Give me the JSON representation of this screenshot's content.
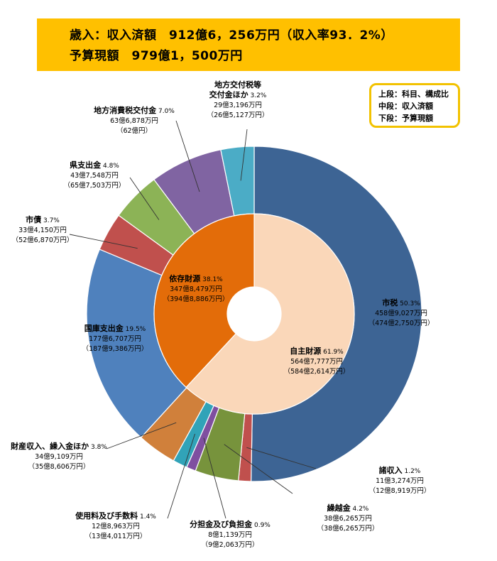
{
  "header": {
    "line1": "歳入：収入済額　912億6，256万円（収入率93．2%）",
    "line2": "予算現額　979億1，500万円"
  },
  "legend_box": {
    "line1": "上段：科目、構成比",
    "line2": "中段：収入済額",
    "line3": "下段：予算現額"
  },
  "chart_data": {
    "type": "pie",
    "subtype": "nested-donut",
    "start": "12 o'clock",
    "direction": "clockwise",
    "inner_ring": [
      {
        "name": "自主財源",
        "pct": "61.9%",
        "share": 61.9,
        "actual": "564億7,777万円",
        "budget": "（584億2,614万円）",
        "color": "#fad7b9"
      },
      {
        "name": "依存財源",
        "pct": "38.1%",
        "share": 38.1,
        "actual": "347億8,479万円",
        "budget": "（394億8,886万円）",
        "color": "#e36c09"
      }
    ],
    "outer_ring": [
      {
        "name": "市税",
        "pct": "50.3%",
        "share": 50.3,
        "actual": "458億9,027万円",
        "budget": "（474億2,750万円）",
        "color": "#3d6494"
      },
      {
        "name": "諸収入",
        "pct": "1.2%",
        "share": 1.2,
        "actual": "11億3,274万円",
        "budget": "（12億8,919万円）",
        "color": "#c0504d"
      },
      {
        "name": "繰越金",
        "pct": "4.2%",
        "share": 4.2,
        "actual": "38億6,265万円",
        "budget": "（38億6,265万円）",
        "color": "#77933c"
      },
      {
        "name": "分担金及び負担金",
        "pct": "0.9%",
        "share": 0.9,
        "actual": "8億1,139万円",
        "budget": "（9億2,063万円）",
        "color": "#7f4fa0"
      },
      {
        "name": "使用料及び手数料",
        "pct": "1.4%",
        "share": 1.4,
        "actual": "12億8,963万円",
        "budget": "（13億4,011万円）",
        "color": "#31a3b8"
      },
      {
        "name": "財産収入、繰入金ほか",
        "pct": "3.8%",
        "share": 3.8,
        "actual": "34億9,109万円",
        "budget": "（35億8,606万円）",
        "color": "#d0803b"
      },
      {
        "name": "国庫支出金",
        "pct": "19.5%",
        "share": 19.5,
        "actual": "177億6,707万円",
        "budget": "（187億9,386万円）",
        "color": "#4f81bd"
      },
      {
        "name": "市債",
        "pct": "3.7%",
        "share": 3.7,
        "actual": "33億4,150万円",
        "budget": "（52億6,870万円）",
        "color": "#c0504d"
      },
      {
        "name": "県支出金",
        "pct": "4.8%",
        "share": 4.8,
        "actual": "43億7,548万円",
        "budget": "（65億7,503万円）",
        "color": "#8cb356"
      },
      {
        "name": "地方消費税交付金",
        "pct": "7.0%",
        "share": 7.0,
        "actual": "63億6,878万円",
        "budget": "（62億円）",
        "color": "#8064a2"
      },
      {
        "name": "地方交付税等\n交付金ほか",
        "pct": "3.2%",
        "share": 3.2,
        "actual": "29億3,196万円",
        "budget": "（26億5,127万円）",
        "color": "#4bacc6"
      }
    ]
  }
}
